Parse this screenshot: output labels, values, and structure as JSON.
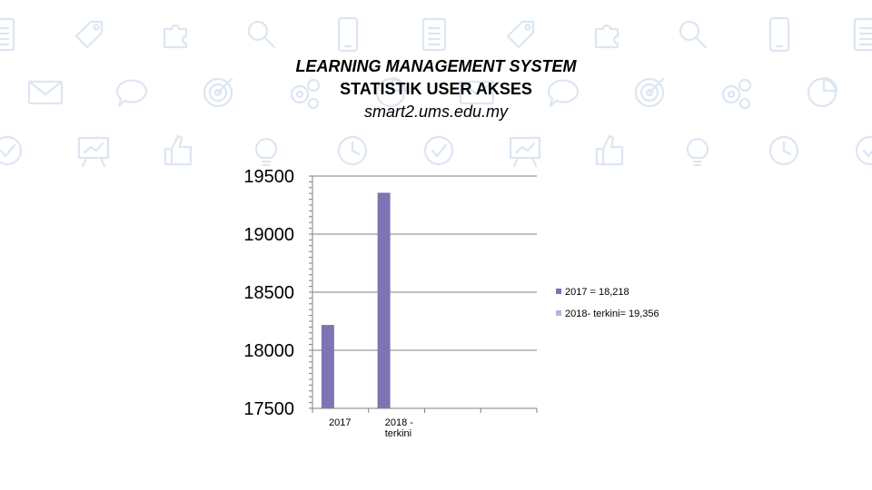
{
  "slide": {
    "title_line1": "LEARNING MANAGEMENT SYSTEM",
    "title_line2": "STATISTIK USER AKSES",
    "title_line3": "smart2.ums.edu.my"
  },
  "background_icons": [
    "document-icon",
    "tag-icon",
    "puzzle-icon",
    "magnifier-icon",
    "phone-icon",
    "mail-icon",
    "chat-bubble-icon",
    "target-icon",
    "gears-icon",
    "pie-icon",
    "check-icon",
    "presentation-icon",
    "thumbs-up-icon",
    "lightbulb-icon",
    "clock-icon"
  ],
  "colors": {
    "accent": "#7f73b3",
    "legend_swatch_2": "#b9b2da",
    "gridline": "#808080",
    "background_icon": "#dce6f2"
  },
  "chart_data": {
    "type": "bar",
    "categories": [
      "2017",
      "2018 - terkini"
    ],
    "empty_category_slots": 2,
    "series": [
      {
        "name": "2017 = 18,218",
        "values": [
          18218,
          null
        ]
      },
      {
        "name": "2018- terkini= 19,356",
        "values": [
          null,
          19356
        ]
      }
    ],
    "bars": [
      {
        "category": "2017",
        "value": 18218
      },
      {
        "category": "2018 - terkini",
        "value": 19356
      }
    ],
    "yticks": [
      "17500",
      "18000",
      "18500",
      "19000",
      "19500"
    ],
    "ylim": [
      17500,
      19500
    ],
    "grid": true,
    "legend_position": "right"
  }
}
